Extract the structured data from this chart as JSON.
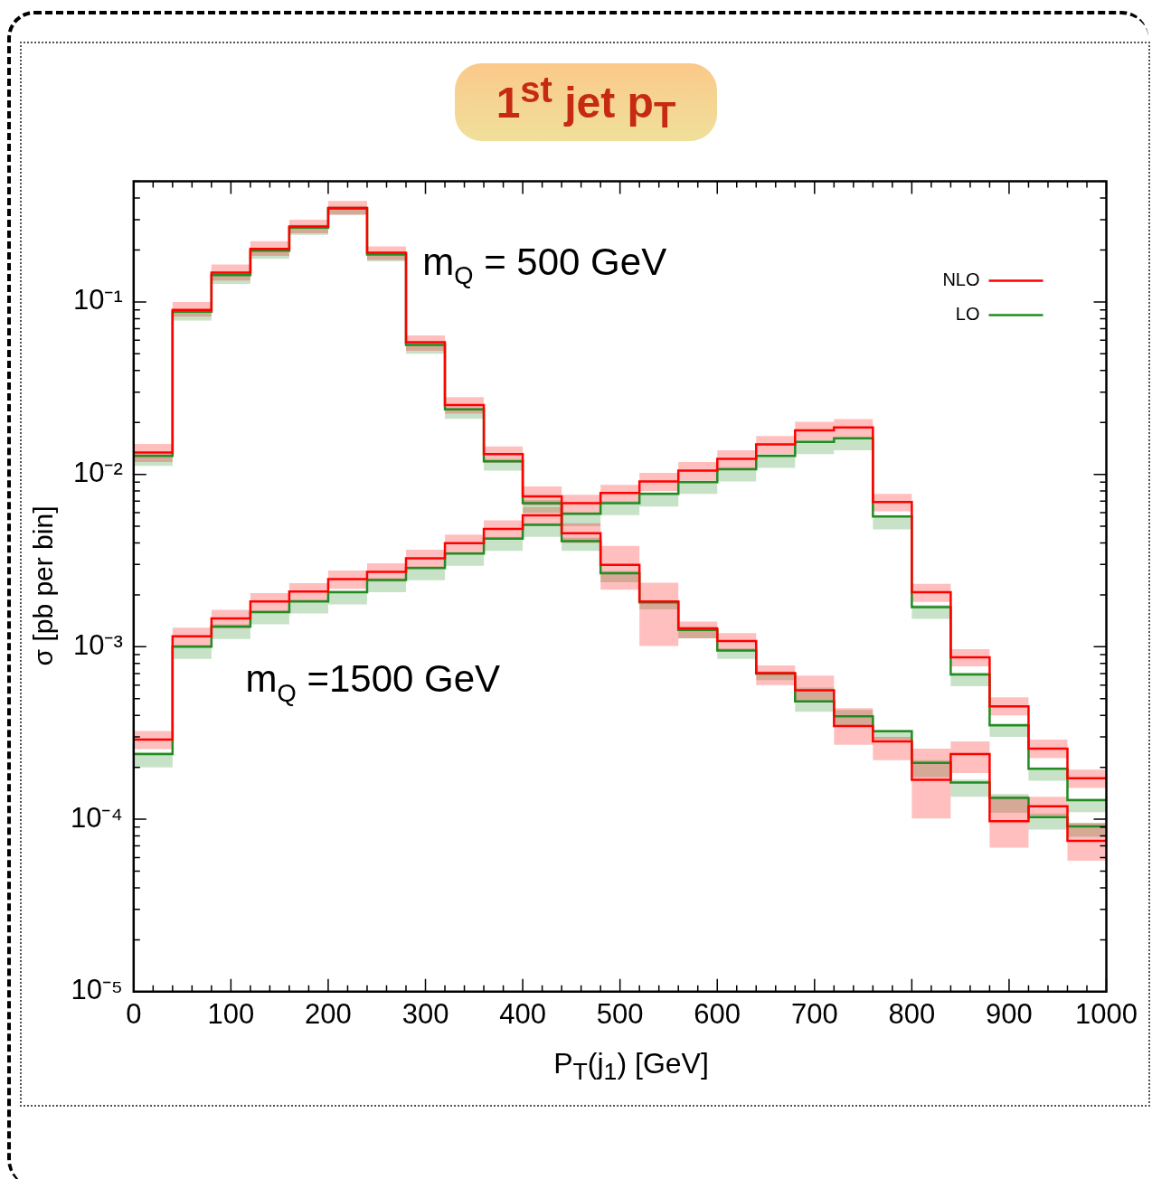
{
  "chart_data": {
    "type": "step",
    "title": "1$^{st}$ jet p$_{T}$",
    "xlabel": "P$_{T}$(j$_{1}$) [GeV]",
    "ylabel": "σ [pb per bin]",
    "x": [
      0,
      40,
      80,
      120,
      160,
      200,
      240,
      280,
      320,
      360,
      400,
      440,
      480,
      520,
      560,
      600,
      640,
      680,
      720,
      760,
      800,
      840,
      880,
      920,
      960,
      1000
    ],
    "series": [
      {
        "name": "NLO",
        "color": "#ff0000",
        "values": [
          0.0134,
          0.09,
          0.148,
          0.203,
          0.274,
          0.351,
          0.193,
          0.0583,
          0.0252,
          0.0131,
          0.00745,
          0.00455,
          0.00299,
          0.00183,
          0.00128,
          0.00108,
          0.000703,
          0.00056,
          0.000347,
          0.000283,
          0.000169,
          0.000239,
          9.75e-05,
          0.000119,
          7.5e-05,
          7.5e-05
        ],
        "lower": [
          0.0118,
          0.082,
          0.133,
          0.185,
          0.25,
          0.32,
          0.175,
          0.052,
          0.0225,
          0.0117,
          0.0066,
          0.004,
          0.00214,
          0.00101,
          0.00112,
          0.00095,
          0.0006,
          0.00048,
          0.00027,
          0.00022,
          0.000101,
          0.000185,
          6.85e-05,
          0.000105,
          5.75e-05,
          5.75e-05
        ],
        "upper": [
          0.015,
          0.1,
          0.165,
          0.225,
          0.3,
          0.385,
          0.21,
          0.064,
          0.028,
          0.0145,
          0.0085,
          0.0052,
          0.00385,
          0.00235,
          0.0014,
          0.0012,
          0.00078,
          0.00068,
          0.00044,
          0.0003,
          0.000257,
          0.000283,
          0.000136,
          0.000135,
          9.5e-05,
          9.5e-05
        ]
      },
      {
        "name": "LO",
        "color": "#228b22",
        "values": [
          0.0128,
          0.0877,
          0.143,
          0.198,
          0.27,
          0.347,
          0.188,
          0.0563,
          0.0238,
          0.0119,
          0.0068,
          0.0041,
          0.00267,
          0.00181,
          0.00125,
          0.00095,
          0.0007,
          0.000482,
          0.000395,
          0.000324,
          0.000212,
          0.000163,
          0.000133,
          0.000103,
          9.1e-05,
          9.1e-05
        ],
        "lower": [
          0.0112,
          0.078,
          0.127,
          0.178,
          0.245,
          0.32,
          0.172,
          0.05,
          0.021,
          0.0105,
          0.006,
          0.0036,
          0.00237,
          0.00165,
          0.00112,
          0.00085,
          0.00064,
          0.00042,
          0.00035,
          0.00029,
          0.000175,
          0.000135,
          0.000109,
          8.7e-05,
          7.9e-05,
          7.9e-05
        ],
        "upper": [
          0.0132,
          0.0905,
          0.148,
          0.204,
          0.28,
          0.36,
          0.196,
          0.058,
          0.0245,
          0.0123,
          0.0071,
          0.0043,
          0.00275,
          0.00186,
          0.0013,
          0.00098,
          0.00072,
          0.00058,
          0.00043,
          0.00033,
          0.00022,
          0.00017,
          0.00014,
          0.000108,
          9.5e-05,
          9.5e-05
        ]
      },
      {
        "color": "#ff0000",
        "values": [
          0.00029,
          0.00115,
          0.00146,
          0.00183,
          0.00209,
          0.00247,
          0.00272,
          0.00326,
          0.00399,
          0.00483,
          0.00578,
          0.0068,
          0.0078,
          0.0091,
          0.0105,
          0.0123,
          0.0149,
          0.018,
          0.0187,
          0.0069,
          0.00207,
          0.00087,
          0.000452,
          0.000257,
          0.000173,
          0.000173
        ],
        "lower": [
          0.000255,
          0.00101,
          0.00128,
          0.00161,
          0.00184,
          0.00217,
          0.00239,
          0.00287,
          0.00351,
          0.00425,
          0.00509,
          0.006,
          0.0069,
          0.008,
          0.0092,
          0.0108,
          0.0131,
          0.0158,
          0.0165,
          0.0061,
          0.00182,
          0.00077,
          0.0004,
          0.000226,
          0.000152,
          0.000152
        ],
        "upper": [
          0.000325,
          0.00129,
          0.00164,
          0.00205,
          0.00234,
          0.00277,
          0.00305,
          0.00365,
          0.00447,
          0.00541,
          0.00647,
          0.0076,
          0.0087,
          0.0102,
          0.0118,
          0.0138,
          0.0167,
          0.0202,
          0.0209,
          0.0077,
          0.00232,
          0.00097,
          0.00051,
          0.00029,
          0.000194,
          0.000194
        ]
      },
      {
        "color": "#228b22",
        "values": [
          0.000239,
          0.001,
          0.00131,
          0.00159,
          0.00183,
          0.00207,
          0.00244,
          0.00286,
          0.00347,
          0.00424,
          0.0051,
          0.0059,
          0.0068,
          0.0077,
          0.009,
          0.0107,
          0.0128,
          0.0154,
          0.0162,
          0.0057,
          0.0017,
          0.00069,
          0.00035,
          0.000196,
          0.000129,
          0.000129
        ],
        "lower": [
          0.0002,
          0.00085,
          0.00111,
          0.00135,
          0.00156,
          0.00176,
          0.00207,
          0.00243,
          0.00295,
          0.0036,
          0.00434,
          0.005,
          0.0058,
          0.0065,
          0.0077,
          0.0091,
          0.0109,
          0.0131,
          0.0138,
          0.0048,
          0.00145,
          0.00059,
          0.0003,
          0.000167,
          0.00011,
          0.00011
        ],
        "upper": [
          0.000245,
          0.00103,
          0.00135,
          0.00163,
          0.00188,
          0.00212,
          0.0025,
          0.00293,
          0.00355,
          0.00434,
          0.00522,
          0.00605,
          0.007,
          0.0079,
          0.0092,
          0.011,
          0.0131,
          0.0158,
          0.0166,
          0.0058,
          0.00175,
          0.00071,
          0.00036,
          0.0002,
          0.000132,
          0.000132
        ]
      }
    ],
    "xlim": [
      0,
      1000
    ],
    "xticks": [
      0,
      {
        "value": 20,
        "label": null
      },
      100,
      {
        "value": 40,
        "label": null
      },
      {
        "value": 60,
        "label": null
      },
      {
        "value": 80,
        "label": null
      },
      200,
      {
        "value": 120,
        "label": null
      },
      {
        "value": 140,
        "label": null
      },
      {
        "value": 160,
        "label": null
      },
      {
        "value": 180,
        "label": null
      },
      {
        "value": 220,
        "label": null
      },
      {
        "value": 240,
        "label": null
      },
      {
        "value": 260,
        "label": null
      },
      {
        "value": 280,
        "label": null
      },
      300,
      {
        "value": 320,
        "label": null
      },
      {
        "value": 340,
        "label": null
      },
      {
        "value": 360,
        "label": null
      },
      {
        "value": 380,
        "label": null
      },
      400,
      {
        "value": 420,
        "label": null
      },
      {
        "value": 440,
        "label": null
      },
      {
        "value": 460,
        "label": null
      },
      {
        "value": 480,
        "label": null
      },
      500,
      {
        "value": 520,
        "label": null
      },
      {
        "value": 540,
        "label": null
      },
      {
        "value": 560,
        "label": null
      },
      {
        "value": 580,
        "label": null
      },
      600,
      {
        "value": 620,
        "label": null
      },
      {
        "value": 640,
        "label": null
      },
      {
        "value": 660,
        "label": null
      },
      {
        "value": 680,
        "label": null
      },
      700,
      {
        "value": 720,
        "label": null
      },
      {
        "value": 740,
        "label": null
      },
      {
        "value": 760,
        "label": null
      },
      {
        "value": 780,
        "label": null
      },
      800,
      {
        "value": 820,
        "label": null
      },
      {
        "value": 840,
        "label": null
      },
      {
        "value": 860,
        "label": null
      },
      {
        "value": 880,
        "label": null
      },
      900,
      {
        "value": 920,
        "label": null
      },
      {
        "value": 940,
        "label": null
      },
      {
        "value": 960,
        "label": null
      },
      {
        "value": 980,
        "label": null
      },
      1000
    ],
    "ylim": [
      1e-05,
      0.5
    ],
    "yticks": [
      {
        "value": 1e-05,
        "label": "10⁻⁵"
      },
      {
        "value": 2e-05,
        "label": null
      },
      {
        "value": 3e-05,
        "label": null
      },
      {
        "value": 4e-05,
        "label": null
      },
      {
        "value": 5e-05,
        "label": null
      },
      {
        "value": 6e-05,
        "label": null
      },
      {
        "value": 7e-05,
        "label": null
      },
      {
        "value": 8e-05,
        "label": null
      },
      {
        "value": 9e-05,
        "label": null
      },
      {
        "value": 0.0001,
        "label": "10⁻⁴"
      },
      {
        "value": 0.0002,
        "label": null
      },
      {
        "value": 0.0003,
        "label": null
      },
      {
        "value": 0.0004,
        "label": null
      },
      {
        "value": 0.0005,
        "label": null
      },
      {
        "value": 0.0006,
        "label": null
      },
      {
        "value": 0.0007,
        "label": null
      },
      {
        "value": 0.0008,
        "label": null
      },
      {
        "value": 0.0009,
        "label": null
      },
      {
        "value": 0.001,
        "label": "10⁻³"
      },
      {
        "value": 0.002,
        "label": null
      },
      {
        "value": 0.003,
        "label": null
      },
      {
        "value": 0.004,
        "label": null
      },
      {
        "value": 0.005,
        "label": null
      },
      {
        "value": 0.006,
        "label": null
      },
      {
        "value": 0.007,
        "label": null
      },
      {
        "value": 0.008,
        "label": null
      },
      {
        "value": 0.009,
        "label": null
      },
      {
        "value": 0.01,
        "label": "10⁻²"
      },
      {
        "value": 0.02,
        "label": null
      },
      {
        "value": 0.03,
        "label": null
      },
      {
        "value": 0.04,
        "label": null
      },
      {
        "value": 0.05,
        "label": null
      },
      {
        "value": 0.06,
        "label": null
      },
      {
        "value": 0.07,
        "label": null
      },
      {
        "value": 0.08,
        "label": null
      },
      {
        "value": 0.09,
        "label": null
      },
      {
        "value": 0.1,
        "label": "10⁻¹"
      },
      {
        "value": 0.2,
        "label": null
      },
      {
        "value": 0.3,
        "label": null
      },
      {
        "value": 0.4,
        "label": null
      },
      {
        "value": 0.5,
        "label": null
      }
    ],
    "log": "y",
    "grid": false,
    "legend": "top right",
    "annotations": [
      "m$_{Q}$ = 500 GeV",
      "m$_{Q}$ =1500 GeV"
    ]
  }
}
